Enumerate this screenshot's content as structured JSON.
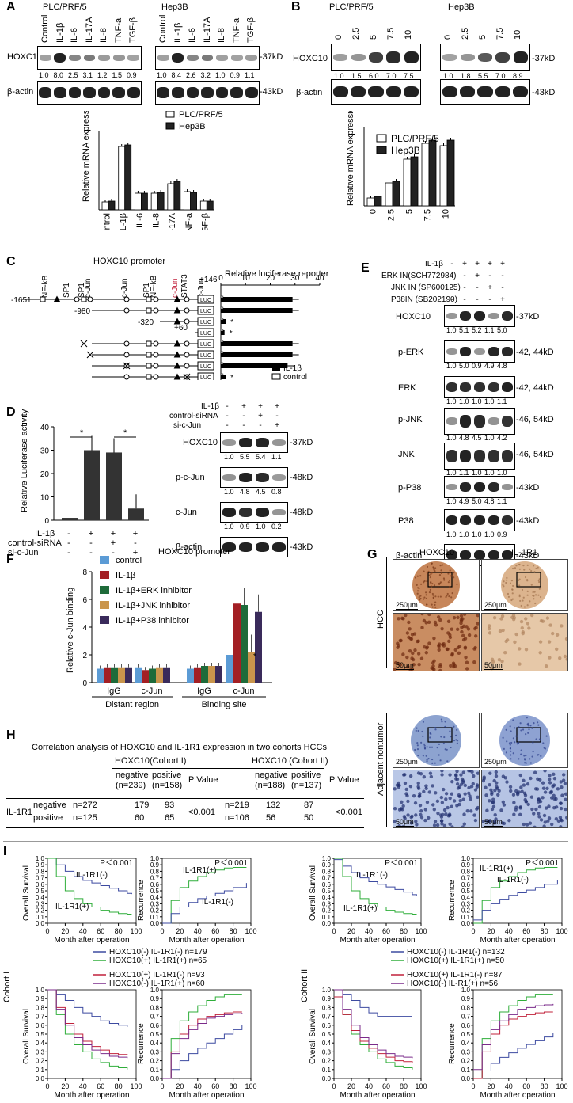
{
  "panelA": {
    "label": "A",
    "cell_lines": [
      "PLC/PRF/5",
      "Hep3B"
    ],
    "treatments": [
      "Control",
      "IL-1β",
      "IL-6",
      "IL-17A",
      "IL-8",
      "TNF-a",
      "TGF-β"
    ],
    "proteins": [
      "HOXC10",
      "β-actin"
    ],
    "sizes": [
      "-37kD",
      "-43kD"
    ],
    "ratios_plc": [
      "1.0",
      "8.0",
      "2.5",
      "3.1",
      "1.2",
      "1.5",
      "0.9"
    ],
    "ratios_hep": [
      "1.0",
      "8.4",
      "2.6",
      "3.2",
      "1.0",
      "0.9",
      "1.1"
    ],
    "chart_data": {
      "type": "bar",
      "ylabel": "Relative mRNA expression",
      "categories": [
        "Control",
        "IL-1β",
        "IL-6",
        "IL-8",
        "IL-17A",
        "TNF-a",
        "TGF-β"
      ],
      "series": [
        {
          "name": "PLC/PRF/5",
          "color": "#ffffff",
          "values": [
            1.0,
            8.0,
            2.1,
            2.1,
            3.3,
            2.3,
            1.1
          ]
        },
        {
          "name": "Hep3B",
          "color": "#222222",
          "values": [
            1.1,
            8.2,
            2.1,
            2.2,
            3.6,
            2.2,
            1.1
          ]
        }
      ]
    }
  },
  "panelB": {
    "label": "B",
    "cell_lines": [
      "PLC/PRF/5",
      "Hep3B"
    ],
    "doses": [
      "0",
      "2.5",
      "5",
      "7.5",
      "10"
    ],
    "proteins": [
      "HOXC10",
      "β-actin"
    ],
    "sizes": [
      "-37kD",
      "-43kD"
    ],
    "ratios_plc": [
      "1.0",
      "1.5",
      "6.0",
      "7.0",
      "7.5"
    ],
    "ratios_hep": [
      "1.0",
      "1.8",
      "5.5",
      "7.0",
      "8.9"
    ],
    "chart_data": {
      "type": "bar",
      "ylabel": "Relative mRNA expression",
      "categories": [
        "0",
        "2.5",
        "5",
        "7.5",
        "10"
      ],
      "series": [
        {
          "name": "PLC/PRF/5",
          "color": "#ffffff",
          "values": [
            1.0,
            2.9,
            5.9,
            7.9,
            7.6
          ]
        },
        {
          "name": "Hep3B",
          "color": "#222222",
          "values": [
            1.2,
            3.1,
            6.2,
            8.3,
            8.3
          ]
        }
      ]
    }
  },
  "panelC": {
    "label": "C",
    "title": "HOXC10 promoter",
    "reporter_title": "Relative luciferase reporter",
    "ticks": [
      "0",
      "10",
      "20",
      "30",
      "40"
    ],
    "sites": [
      "NF-kB",
      "SP1",
      "SP1",
      "c-Jun",
      "c-Jun",
      "SP1",
      "NF-kB",
      "c-Jun",
      "STAT3",
      "c-Jun"
    ],
    "positions": [
      "-1651",
      "-980",
      "-320",
      "+60",
      "+146"
    ],
    "luc": "LUC",
    "legend": [
      "IL-1β",
      "control"
    ],
    "chart_data": {
      "type": "bar",
      "series": [
        {
          "name": "IL-1β",
          "values": [
            29,
            29,
            2,
            1.5,
            29,
            29,
            27,
            2
          ]
        },
        {
          "name": "control",
          "values": [
            0.6,
            0.6,
            0.6,
            0.6,
            0.6,
            0.6,
            0.6,
            0.6
          ]
        }
      ]
    }
  },
  "panelD": {
    "label": "D",
    "ylabel": "Relative Luciferase activity",
    "row_labels": [
      "IL-1β",
      "control-siRNA",
      "si-c-Jun"
    ],
    "signs": [
      [
        "-",
        "+",
        "+",
        "+"
      ],
      [
        "-",
        "-",
        "+",
        "-"
      ],
      [
        "-",
        "-",
        "-",
        "+"
      ]
    ],
    "proteins": [
      "HOXC10",
      "p-c-Jun",
      "c-Jun",
      "β-actin"
    ],
    "sizes": [
      "-37kD",
      "-48kD",
      "-48kD",
      "-43kD"
    ],
    "ratios": [
      [
        "1.0",
        "5.5",
        "5.4",
        "1.1"
      ],
      [
        "1.0",
        "4.8",
        "4.5",
        "0.8"
      ],
      [
        "1.0",
        "0.9",
        "1.0",
        "0.2"
      ]
    ],
    "star": "*",
    "chart_data": {
      "type": "bar",
      "values": [
        1,
        30,
        29,
        5
      ],
      "ylim": [
        0,
        40
      ],
      "ticks": [
        "0",
        "10",
        "20",
        "30",
        "40"
      ]
    }
  },
  "panelE": {
    "label": "E",
    "row_labels": [
      "IL-1β",
      "ERK IN(SCH772984)",
      "JNK IN (SP600125)",
      "P38IN (SB202190)"
    ],
    "signs": [
      [
        "-",
        "+",
        "+",
        "+",
        "+"
      ],
      [
        "-",
        "-",
        "+",
        "-",
        "-"
      ],
      [
        "-",
        "-",
        "-",
        "+",
        "-"
      ],
      [
        "-",
        "-",
        "-",
        "-",
        "+"
      ]
    ],
    "proteins": [
      "HOXC10",
      "p-ERK",
      "ERK",
      "p-JNK",
      "JNK",
      "p-P38",
      "P38",
      "β-actin"
    ],
    "sizes": [
      "-37kD",
      "-42, 44kD",
      "-42, 44kD",
      "-46, 54kD",
      "-46, 54kD",
      "-43kD",
      "-43kD",
      "-43kD"
    ],
    "ratios": [
      [
        "1.0",
        "5.1",
        "5.2",
        "1.1",
        "5.0"
      ],
      [
        "1.0",
        "5.0",
        "0.9",
        "4.9",
        "4.8"
      ],
      [
        "1.0",
        "1.0",
        "1.0",
        "1.0",
        "1.1"
      ],
      [
        "1.0",
        "4.8",
        "4.5",
        "1.0",
        "4.2"
      ],
      [
        "1.0",
        "1.1",
        "1.0",
        "1.0",
        "1.0"
      ],
      [
        "1.0",
        "4.9",
        "5.0",
        "4.8",
        "1.1"
      ],
      [
        "1.0",
        "1.0",
        "1.0",
        "1.0",
        "0.9"
      ]
    ]
  },
  "panelF": {
    "label": "F",
    "title": "HOXC10 promoter",
    "ylabel": "Relative c-Jun binding",
    "groups": [
      "IgG",
      "c-Jun",
      "IgG",
      "c-Jun"
    ],
    "regions": [
      "Distant region",
      "Binding site"
    ],
    "chart_data": {
      "type": "bar",
      "ticks": [
        "0",
        "2",
        "4",
        "6",
        "8"
      ],
      "series": [
        {
          "name": "control",
          "color": "#5b9bd5",
          "values": [
            1.0,
            1.1,
            1.0,
            2.0
          ]
        },
        {
          "name": "IL-1β",
          "color": "#a31f24",
          "values": [
            1.1,
            0.9,
            1.1,
            5.7
          ]
        },
        {
          "name": "IL-1β+ERK inhibitor",
          "color": "#1e6b3a",
          "values": [
            1.1,
            1.0,
            1.2,
            5.6
          ]
        },
        {
          "name": "IL-1β+JNK inhibitor",
          "color": "#c9954c",
          "values": [
            1.1,
            1.1,
            1.2,
            2.2
          ]
        },
        {
          "name": "IL-1β+P38 inhibitor",
          "color": "#3a2b5b",
          "values": [
            1.1,
            1.1,
            1.2,
            5.1
          ]
        }
      ]
    }
  },
  "panelG": {
    "label": "G",
    "cols": [
      "HOXC10",
      "IL-1R1"
    ],
    "rows": [
      "HCC",
      "Adjacent nontumor"
    ],
    "scale_large": "250μm",
    "scale_small": "50μm"
  },
  "panelH": {
    "label": "H",
    "title": "Correlation analysis of HOXC10 and IL-1R1 expression in two cohorts HCCs",
    "cohort1": "HOXC10(Cohort I)",
    "cohort2": "HOXC10 (Cohort II)",
    "headers1": [
      "negative (n=239)",
      "positive (n=158)",
      "P Value"
    ],
    "headers2": [
      "negative (n=188)",
      "positive (n=137)",
      "P Value"
    ],
    "row_label": "IL-1R1",
    "rows": [
      {
        "name": "negative",
        "n1": "n=272",
        "a": "179",
        "b": "93",
        "n2": "n=219",
        "c": "132",
        "d": "87"
      },
      {
        "name": "positive",
        "n1": "n=125",
        "a": "60",
        "b": "65",
        "n2": "n=106",
        "c": "56",
        "d": "50"
      }
    ],
    "p1": "<0.001",
    "p2": "<0.001"
  },
  "panelI": {
    "label": "I",
    "cohorts": [
      "Cohort I",
      "Cohort II"
    ],
    "xlabel": "Month after operation",
    "ylabels": [
      "Overall Survival",
      "Recurrence"
    ],
    "pvalue": "P＜0.001",
    "xticks": [
      "0",
      "20",
      "40",
      "60",
      "80",
      "100"
    ],
    "yticks": [
      "0.0",
      "0.1",
      "0.2",
      "0.3",
      "0.4",
      "0.5",
      "0.6",
      "0.7",
      "0.8",
      "0.9",
      "1.0"
    ],
    "curve_labels": [
      "IL-1R1(-)",
      "IL-1R1(+)"
    ],
    "legend_c1_a": [
      "HOXC10(-) IL-1R1(-) n=179",
      "HOXC10(+) IL-1R1(+) n=65"
    ],
    "legend_c1_b": [
      "HOXC10(+) IL-1R1(-) n=93",
      "HOXC10(-)  IL-1R1(+) n=60"
    ],
    "legend_c2_a": [
      "HOXC10(-) IL-1R1(-) n=132",
      "HOXC10(+) IL-1R1(+) n=50"
    ],
    "legend_c2_b": [
      "HOXC10(+) IL-1R1(-) n=87",
      "HOXC10(-)  IL-R1(+) n=56"
    ],
    "colors": {
      "neg": "#3c4aa0",
      "pos": "#2fae3a",
      "mixA": "#c0203a",
      "mixB": "#7a2a8a"
    }
  }
}
